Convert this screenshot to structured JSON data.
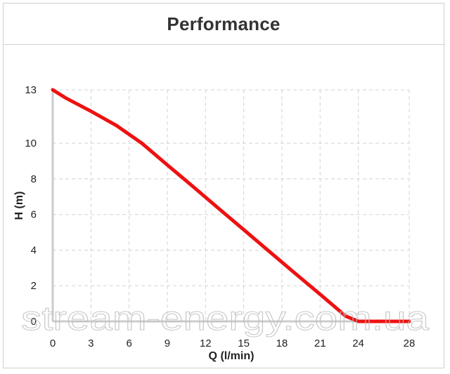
{
  "chart_data": {
    "type": "line",
    "title": "Performance",
    "xlabel": "Q (l/min)",
    "ylabel": "H (m)",
    "xlim": [
      0,
      28
    ],
    "ylim": [
      0,
      13
    ],
    "x_ticks": [
      0,
      3,
      6,
      9,
      12,
      15,
      18,
      21,
      24,
      28
    ],
    "y_ticks": [
      0,
      2,
      4,
      6,
      8,
      10,
      13
    ],
    "grid": true,
    "grid_style": "dashed",
    "series": [
      {
        "color": "#ee1111",
        "x": [
          0,
          1,
          3,
          5,
          7,
          9,
          11,
          13,
          15,
          17,
          19,
          21,
          23,
          24,
          25,
          28
        ],
        "y": [
          13,
          12.55,
          11.8,
          11.0,
          10.0,
          8.78,
          7.58,
          6.36,
          5.15,
          3.93,
          2.72,
          1.52,
          0.3,
          0.0,
          0.0,
          0.0
        ]
      }
    ],
    "watermark": "stream-energy.com.ua"
  }
}
